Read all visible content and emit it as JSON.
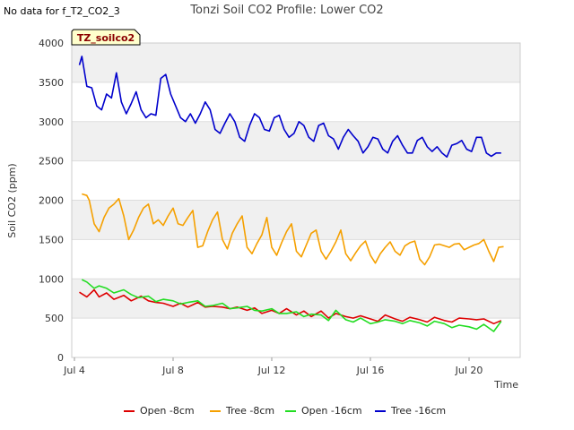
{
  "header": {
    "no_data_text": "No data for f_T2_CO2_3"
  },
  "badge": {
    "label": "TZ_soilco2"
  },
  "colors": {
    "band": "#f0f0f0",
    "grid": "#dddddd",
    "badge_bg": "#ffffcc",
    "badge_text": "#8b0000"
  },
  "chart_data": {
    "type": "line",
    "title": "Tonzi Soil CO2 Profile: Lower CO2",
    "xlabel": "Time",
    "ylabel": "Soil CO2 (ppm)",
    "ylim": [
      0,
      4000
    ],
    "xlim": [
      0,
      18
    ],
    "yticks": [
      0,
      500,
      1000,
      1500,
      2000,
      2500,
      3000,
      3500,
      4000
    ],
    "xticks": [
      {
        "value": 0,
        "label": "Jul 4"
      },
      {
        "value": 4,
        "label": "Jul 8"
      },
      {
        "value": 8,
        "label": "Jul 12"
      },
      {
        "value": 12,
        "label": "Jul 16"
      },
      {
        "value": 16,
        "label": "Jul 20"
      }
    ],
    "grid": true,
    "legend_position": "bottom",
    "x_unit": "days since Jul 4",
    "series": [
      {
        "name": "Open -8cm",
        "color": "#dd0000",
        "x": [
          0.2,
          0.5,
          0.8,
          1.0,
          1.3,
          1.6,
          2.0,
          2.3,
          2.7,
          3.0,
          3.3,
          3.6,
          4.0,
          4.3,
          4.6,
          5.0,
          5.3,
          5.6,
          6.0,
          6.3,
          6.6,
          7.0,
          7.3,
          7.6,
          8.0,
          8.3,
          8.6,
          9.0,
          9.3,
          9.6,
          10.0,
          10.3,
          10.6,
          11.0,
          11.3,
          11.6,
          12.0,
          12.3,
          12.6,
          13.0,
          13.3,
          13.6,
          14.0,
          14.3,
          14.6,
          15.0,
          15.3,
          15.6,
          16.0,
          16.3,
          16.6,
          17.0,
          17.3
        ],
        "y": [
          830,
          770,
          860,
          770,
          820,
          740,
          790,
          720,
          780,
          720,
          700,
          690,
          650,
          690,
          640,
          700,
          640,
          650,
          640,
          620,
          640,
          600,
          630,
          560,
          600,
          560,
          620,
          540,
          590,
          520,
          590,
          500,
          560,
          520,
          500,
          530,
          490,
          460,
          540,
          490,
          460,
          510,
          480,
          450,
          510,
          470,
          450,
          500,
          490,
          480,
          490,
          430,
          470
        ]
      },
      {
        "name": "Tree -8cm",
        "color": "#f5a000",
        "x": [
          0.3,
          0.5,
          0.6,
          0.8,
          1.0,
          1.2,
          1.4,
          1.6,
          1.8,
          2.0,
          2.2,
          2.4,
          2.6,
          2.8,
          3.0,
          3.2,
          3.4,
          3.6,
          3.8,
          4.0,
          4.2,
          4.4,
          4.6,
          4.8,
          5.0,
          5.2,
          5.4,
          5.6,
          5.8,
          6.0,
          6.2,
          6.4,
          6.6,
          6.8,
          7.0,
          7.2,
          7.4,
          7.6,
          7.8,
          8.0,
          8.2,
          8.4,
          8.6,
          8.8,
          9.0,
          9.2,
          9.4,
          9.6,
          9.8,
          10.0,
          10.2,
          10.4,
          10.6,
          10.8,
          11.0,
          11.2,
          11.4,
          11.6,
          11.8,
          12.0,
          12.2,
          12.4,
          12.6,
          12.8,
          13.0,
          13.2,
          13.4,
          13.6,
          13.8,
          14.0,
          14.2,
          14.4,
          14.6,
          14.8,
          15.0,
          15.2,
          15.4,
          15.6,
          15.8,
          16.0,
          16.2,
          16.4,
          16.6,
          16.8,
          17.0,
          17.2,
          17.4
        ],
        "y": [
          2080,
          2060,
          2000,
          1700,
          1600,
          1780,
          1900,
          1950,
          2020,
          1800,
          1500,
          1620,
          1780,
          1900,
          1950,
          1700,
          1750,
          1680,
          1800,
          1900,
          1700,
          1680,
          1780,
          1870,
          1400,
          1420,
          1600,
          1750,
          1850,
          1500,
          1380,
          1580,
          1700,
          1800,
          1400,
          1320,
          1450,
          1560,
          1780,
          1400,
          1300,
          1460,
          1600,
          1700,
          1350,
          1280,
          1430,
          1580,
          1620,
          1350,
          1250,
          1350,
          1470,
          1620,
          1320,
          1230,
          1330,
          1420,
          1480,
          1300,
          1200,
          1320,
          1400,
          1470,
          1350,
          1300,
          1420,
          1460,
          1480,
          1250,
          1180,
          1280,
          1430,
          1440,
          1420,
          1400,
          1440,
          1450,
          1370,
          1400,
          1430,
          1450,
          1500,
          1350,
          1220,
          1400,
          1410
        ]
      },
      {
        "name": "Open -16cm",
        "color": "#22dd22",
        "x": [
          0.3,
          0.5,
          0.8,
          1.0,
          1.3,
          1.6,
          2.0,
          2.3,
          2.6,
          3.0,
          3.3,
          3.6,
          4.0,
          4.3,
          4.6,
          5.0,
          5.3,
          5.6,
          6.0,
          6.3,
          6.6,
          7.0,
          7.3,
          7.6,
          8.0,
          8.3,
          8.6,
          9.0,
          9.3,
          9.6,
          10.0,
          10.3,
          10.6,
          11.0,
          11.3,
          11.6,
          12.0,
          12.3,
          12.6,
          13.0,
          13.3,
          13.6,
          14.0,
          14.3,
          14.6,
          15.0,
          15.3,
          15.6,
          16.0,
          16.3,
          16.6,
          17.0,
          17.3
        ],
        "y": [
          990,
          960,
          880,
          910,
          880,
          820,
          860,
          800,
          760,
          780,
          710,
          740,
          720,
          680,
          700,
          720,
          650,
          660,
          690,
          620,
          630,
          650,
          600,
          590,
          620,
          560,
          560,
          580,
          520,
          550,
          540,
          470,
          600,
          480,
          450,
          500,
          430,
          450,
          480,
          460,
          430,
          470,
          440,
          400,
          460,
          430,
          380,
          410,
          390,
          360,
          420,
          330,
          460
        ]
      },
      {
        "name": "Tree -16cm",
        "color": "#0000cc",
        "x": [
          0.2,
          0.3,
          0.5,
          0.7,
          0.9,
          1.1,
          1.3,
          1.5,
          1.7,
          1.9,
          2.1,
          2.3,
          2.5,
          2.7,
          2.9,
          3.1,
          3.3,
          3.5,
          3.7,
          3.9,
          4.1,
          4.3,
          4.5,
          4.7,
          4.9,
          5.1,
          5.3,
          5.5,
          5.7,
          5.9,
          6.1,
          6.3,
          6.5,
          6.7,
          6.9,
          7.1,
          7.3,
          7.5,
          7.7,
          7.9,
          8.1,
          8.3,
          8.5,
          8.7,
          8.9,
          9.1,
          9.3,
          9.5,
          9.7,
          9.9,
          10.1,
          10.3,
          10.5,
          10.7,
          10.9,
          11.1,
          11.3,
          11.5,
          11.7,
          11.9,
          12.1,
          12.3,
          12.5,
          12.7,
          12.9,
          13.1,
          13.3,
          13.5,
          13.7,
          13.9,
          14.1,
          14.3,
          14.5,
          14.7,
          14.9,
          15.1,
          15.3,
          15.5,
          15.7,
          15.9,
          16.1,
          16.3,
          16.5,
          16.7,
          16.9,
          17.1,
          17.3
        ],
        "y": [
          3720,
          3830,
          3450,
          3430,
          3200,
          3150,
          3350,
          3300,
          3620,
          3250,
          3100,
          3230,
          3380,
          3150,
          3050,
          3100,
          3080,
          3550,
          3600,
          3350,
          3200,
          3050,
          3000,
          3100,
          2980,
          3100,
          3250,
          3150,
          2900,
          2850,
          2980,
          3100,
          3000,
          2800,
          2750,
          2950,
          3100,
          3050,
          2900,
          2880,
          3050,
          3080,
          2900,
          2800,
          2850,
          3000,
          2950,
          2800,
          2750,
          2950,
          2980,
          2820,
          2780,
          2650,
          2800,
          2900,
          2820,
          2750,
          2600,
          2680,
          2800,
          2780,
          2650,
          2600,
          2750,
          2820,
          2700,
          2600,
          2600,
          2760,
          2800,
          2680,
          2620,
          2680,
          2600,
          2550,
          2700,
          2720,
          2760,
          2650,
          2620,
          2800,
          2800,
          2600,
          2560,
          2600,
          2600
        ]
      }
    ]
  }
}
